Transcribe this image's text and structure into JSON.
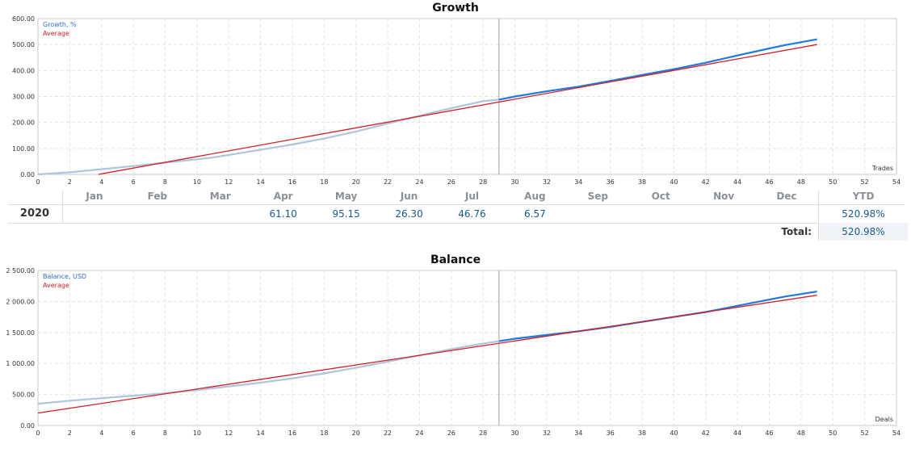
{
  "chart_data": [
    {
      "type": "line",
      "title": "Growth",
      "xlabel": "Trades",
      "ylabel": "",
      "xlim": [
        0,
        54
      ],
      "ylim": [
        0,
        600
      ],
      "x_ticks": [
        0,
        2,
        4,
        6,
        8,
        10,
        12,
        14,
        16,
        18,
        20,
        22,
        24,
        26,
        28,
        30,
        32,
        34,
        36,
        38,
        40,
        42,
        44,
        46,
        48,
        50,
        52,
        54
      ],
      "y_ticks": [
        "0.00",
        "100.00",
        "200.00",
        "300.00",
        "400.00",
        "500.00",
        "600.00"
      ],
      "grid": true,
      "legend_position": "top-left",
      "marker_x": 29,
      "series": [
        {
          "name": "Growth, %",
          "color": "#b0c4de",
          "x": [
            0,
            2,
            4,
            6,
            8,
            10,
            11,
            12,
            14,
            16,
            18,
            20,
            22,
            24,
            26,
            28,
            29
          ],
          "y": [
            0,
            8,
            20,
            32,
            45,
            58,
            65,
            75,
            95,
            115,
            138,
            165,
            196,
            226,
            255,
            282,
            288
          ]
        },
        {
          "name": "",
          "color": "#1f7ae0",
          "x": [
            29,
            30,
            32,
            34,
            36,
            38,
            40,
            42,
            44,
            46,
            47,
            49
          ],
          "y": [
            288,
            300,
            320,
            338,
            360,
            383,
            405,
            430,
            458,
            485,
            498,
            520
          ]
        },
        {
          "name": "Average",
          "color": "#d41f26",
          "x": [
            3.8,
            49
          ],
          "y": [
            0,
            500
          ]
        }
      ],
      "months": [
        "Jan",
        "Feb",
        "Mar",
        "Apr",
        "May",
        "Jun",
        "Jul",
        "Aug",
        "Sep",
        "Oct",
        "Nov",
        "Dec"
      ],
      "table": {
        "year": "2020",
        "values": [
          "",
          "",
          "",
          "61.10",
          "95.15",
          "26.30",
          "46.76",
          "6.57",
          "",
          "",
          "",
          ""
        ],
        "ytd_label": "YTD",
        "ytd": "520.98%",
        "total_label": "Total:",
        "total": "520.98%"
      }
    },
    {
      "type": "line",
      "title": "Balance",
      "xlabel": "Deals",
      "ylabel": "",
      "xlim": [
        0,
        54
      ],
      "ylim": [
        0,
        2500
      ],
      "x_ticks": [
        0,
        2,
        4,
        6,
        8,
        10,
        12,
        14,
        16,
        18,
        20,
        22,
        24,
        26,
        28,
        30,
        32,
        34,
        36,
        38,
        40,
        42,
        44,
        46,
        48,
        50,
        52,
        54
      ],
      "y_ticks": [
        "0.00",
        "500.00",
        "1 000.00",
        "1 500.00",
        "2 000.00",
        "2 500.00"
      ],
      "grid": true,
      "legend_position": "top-left",
      "marker_x": 29,
      "series": [
        {
          "name": "Balance, USD",
          "color": "#b0c4de",
          "x": [
            0,
            2,
            4,
            6,
            8,
            10,
            12,
            14,
            16,
            18,
            20,
            22,
            24,
            26,
            28,
            29
          ],
          "y": [
            350,
            400,
            440,
            480,
            520,
            570,
            630,
            690,
            760,
            840,
            930,
            1030,
            1130,
            1230,
            1320,
            1360
          ]
        },
        {
          "name": "",
          "color": "#1f7ae0",
          "x": [
            29,
            30,
            32,
            34,
            36,
            38,
            40,
            42,
            44,
            46,
            47,
            49
          ],
          "y": [
            1360,
            1400,
            1460,
            1520,
            1590,
            1670,
            1750,
            1830,
            1930,
            2030,
            2080,
            2160
          ]
        },
        {
          "name": "Average",
          "color": "#d41f26",
          "x": [
            0,
            49
          ],
          "y": [
            200,
            2100
          ]
        }
      ]
    }
  ]
}
